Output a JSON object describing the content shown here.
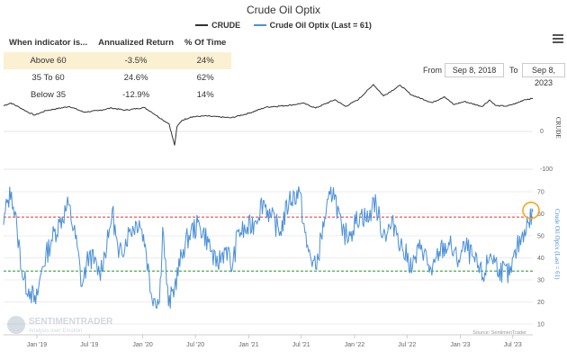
{
  "title": "Crude Oil Optix",
  "legend": [
    {
      "name": "CRUDE",
      "color": "#333333"
    },
    {
      "name": "Crude Oil Optix (Last = 61)",
      "color": "#4a90d9"
    }
  ],
  "table": {
    "headers": [
      "When indicator is...",
      "Annualized Return",
      "% Of Time"
    ],
    "rows": [
      {
        "label": "Above 60",
        "ret": "-3.5%",
        "pct": "24%"
      },
      {
        "label": "35 To 60",
        "ret": "24.6%",
        "pct": "62%"
      },
      {
        "label": "Below 35",
        "ret": "-12.9%",
        "pct": "14%"
      }
    ]
  },
  "range": {
    "from_label": "From",
    "from_value": "Sep 8, 2018",
    "to_label": "To",
    "to_value": "Sep 8, 2023"
  },
  "watermark": {
    "name": "SENTIMENTRADER",
    "tagline": "Analysis over Emotion"
  },
  "source": "Source: SentimenTrader",
  "colors": {
    "crude": "#333333",
    "optix": "#4a90d9",
    "upper_line": "#e8474a",
    "lower_line": "#3aa13a",
    "highlight": "#f5a623"
  },
  "chart_data": {
    "type": "line",
    "x_tick_labels": [
      "Jan '19",
      "Jul '19",
      "Jan '20",
      "Jul '20",
      "Jan '21",
      "Jul '21",
      "Jan '22",
      "Jul '22",
      "Jan '23",
      "Jul '23"
    ],
    "x_range": [
      "2018-09-08",
      "2023-09-08"
    ],
    "crude_axis": {
      "label": "CRUDE",
      "ticks": [
        0,
        -100
      ]
    },
    "optix_axis": {
      "label": "Crude Oil Optix (Last = 61)",
      "ylim": [
        10,
        70
      ],
      "ticks": [
        10,
        20,
        30,
        40,
        50,
        60,
        70
      ]
    },
    "reference_lines": [
      {
        "value": 58.5,
        "color": "#e8474a",
        "style": "dashed"
      },
      {
        "value": 34,
        "color": "#3aa13a",
        "style": "dashed"
      }
    ],
    "series": [
      {
        "name": "CRUDE",
        "points": [
          [
            "2018-09-08",
            68
          ],
          [
            "2018-10-03",
            75
          ],
          [
            "2018-11-01",
            64
          ],
          [
            "2018-12-01",
            51
          ],
          [
            "2018-12-24",
            43
          ],
          [
            "2019-02-01",
            55
          ],
          [
            "2019-04-23",
            66
          ],
          [
            "2019-06-12",
            51
          ],
          [
            "2019-08-01",
            55
          ],
          [
            "2019-09-16",
            62
          ],
          [
            "2019-11-01",
            56
          ],
          [
            "2020-01-06",
            63
          ],
          [
            "2020-02-01",
            51
          ],
          [
            "2020-03-09",
            31
          ],
          [
            "2020-04-01",
            20
          ],
          [
            "2020-04-20",
            -37
          ],
          [
            "2020-04-28",
            12
          ],
          [
            "2020-05-15",
            29
          ],
          [
            "2020-06-15",
            38
          ],
          [
            "2020-08-01",
            41
          ],
          [
            "2020-11-01",
            36
          ],
          [
            "2021-01-01",
            48
          ],
          [
            "2021-03-01",
            64
          ],
          [
            "2021-06-01",
            70
          ],
          [
            "2021-07-06",
            75
          ],
          [
            "2021-08-20",
            62
          ],
          [
            "2021-10-25",
            84
          ],
          [
            "2021-12-01",
            66
          ],
          [
            "2022-01-15",
            85
          ],
          [
            "2022-03-07",
            124
          ],
          [
            "2022-04-11",
            94
          ],
          [
            "2022-06-08",
            122
          ],
          [
            "2022-07-15",
            97
          ],
          [
            "2022-09-26",
            76
          ],
          [
            "2022-11-07",
            92
          ],
          [
            "2022-12-09",
            71
          ],
          [
            "2023-01-15",
            79
          ],
          [
            "2023-03-17",
            66
          ],
          [
            "2023-04-12",
            83
          ],
          [
            "2023-05-04",
            68
          ],
          [
            "2023-06-12",
            67
          ],
          [
            "2023-07-15",
            75
          ],
          [
            "2023-08-10",
            84
          ],
          [
            "2023-09-08",
            87
          ]
        ]
      },
      {
        "name": "Crude Oil Optix (Last = 61)",
        "points": [
          [
            "2018-09-08",
            55
          ],
          [
            "2018-09-20",
            65
          ],
          [
            "2018-10-05",
            70
          ],
          [
            "2018-10-25",
            52
          ],
          [
            "2018-11-15",
            30
          ],
          [
            "2018-12-10",
            25
          ],
          [
            "2018-12-28",
            19
          ],
          [
            "2019-01-20",
            36
          ],
          [
            "2019-02-20",
            48
          ],
          [
            "2019-03-20",
            56
          ],
          [
            "2019-04-20",
            64
          ],
          [
            "2019-05-20",
            45
          ],
          [
            "2019-06-05",
            27
          ],
          [
            "2019-07-01",
            42
          ],
          [
            "2019-08-05",
            33
          ],
          [
            "2019-09-05",
            49
          ],
          [
            "2019-09-18",
            62
          ],
          [
            "2019-10-10",
            40
          ],
          [
            "2019-11-15",
            52
          ],
          [
            "2019-12-20",
            57
          ],
          [
            "2020-01-10",
            46
          ],
          [
            "2020-01-30",
            24
          ],
          [
            "2020-02-28",
            20
          ],
          [
            "2020-03-10",
            54
          ],
          [
            "2020-03-30",
            18
          ],
          [
            "2020-04-20",
            27
          ],
          [
            "2020-05-20",
            44
          ],
          [
            "2020-06-15",
            52
          ],
          [
            "2020-07-15",
            55
          ],
          [
            "2020-08-15",
            47
          ],
          [
            "2020-09-10",
            36
          ],
          [
            "2020-10-15",
            45
          ],
          [
            "2020-11-05",
            35
          ],
          [
            "2020-11-25",
            52
          ],
          [
            "2020-12-20",
            52
          ],
          [
            "2021-01-20",
            56
          ],
          [
            "2021-02-20",
            66
          ],
          [
            "2021-03-20",
            58
          ],
          [
            "2021-04-20",
            52
          ],
          [
            "2021-05-20",
            66
          ],
          [
            "2021-06-25",
            70
          ],
          [
            "2021-07-20",
            45
          ],
          [
            "2021-08-20",
            35
          ],
          [
            "2021-09-20",
            58
          ],
          [
            "2021-10-20",
            72
          ],
          [
            "2021-11-20",
            50
          ],
          [
            "2021-12-20",
            52
          ],
          [
            "2022-01-20",
            60
          ],
          [
            "2022-02-20",
            57
          ],
          [
            "2022-03-08",
            67
          ],
          [
            "2022-04-10",
            51
          ],
          [
            "2022-05-20",
            55
          ],
          [
            "2022-06-15",
            44
          ],
          [
            "2022-07-20",
            36
          ],
          [
            "2022-08-20",
            46
          ],
          [
            "2022-09-25",
            32
          ],
          [
            "2022-10-20",
            43
          ],
          [
            "2022-11-25",
            46
          ],
          [
            "2022-12-20",
            39
          ],
          [
            "2023-01-20",
            45
          ],
          [
            "2023-02-20",
            38
          ],
          [
            "2023-03-20",
            31
          ],
          [
            "2023-04-15",
            42
          ],
          [
            "2023-05-15",
            35
          ],
          [
            "2023-06-20",
            32
          ],
          [
            "2023-07-15",
            44
          ],
          [
            "2023-08-10",
            53
          ],
          [
            "2023-08-25",
            56
          ],
          [
            "2023-09-08",
            61
          ]
        ]
      }
    ],
    "annotation": {
      "date": "2023-09-08",
      "value": 61,
      "shape": "circle"
    }
  }
}
